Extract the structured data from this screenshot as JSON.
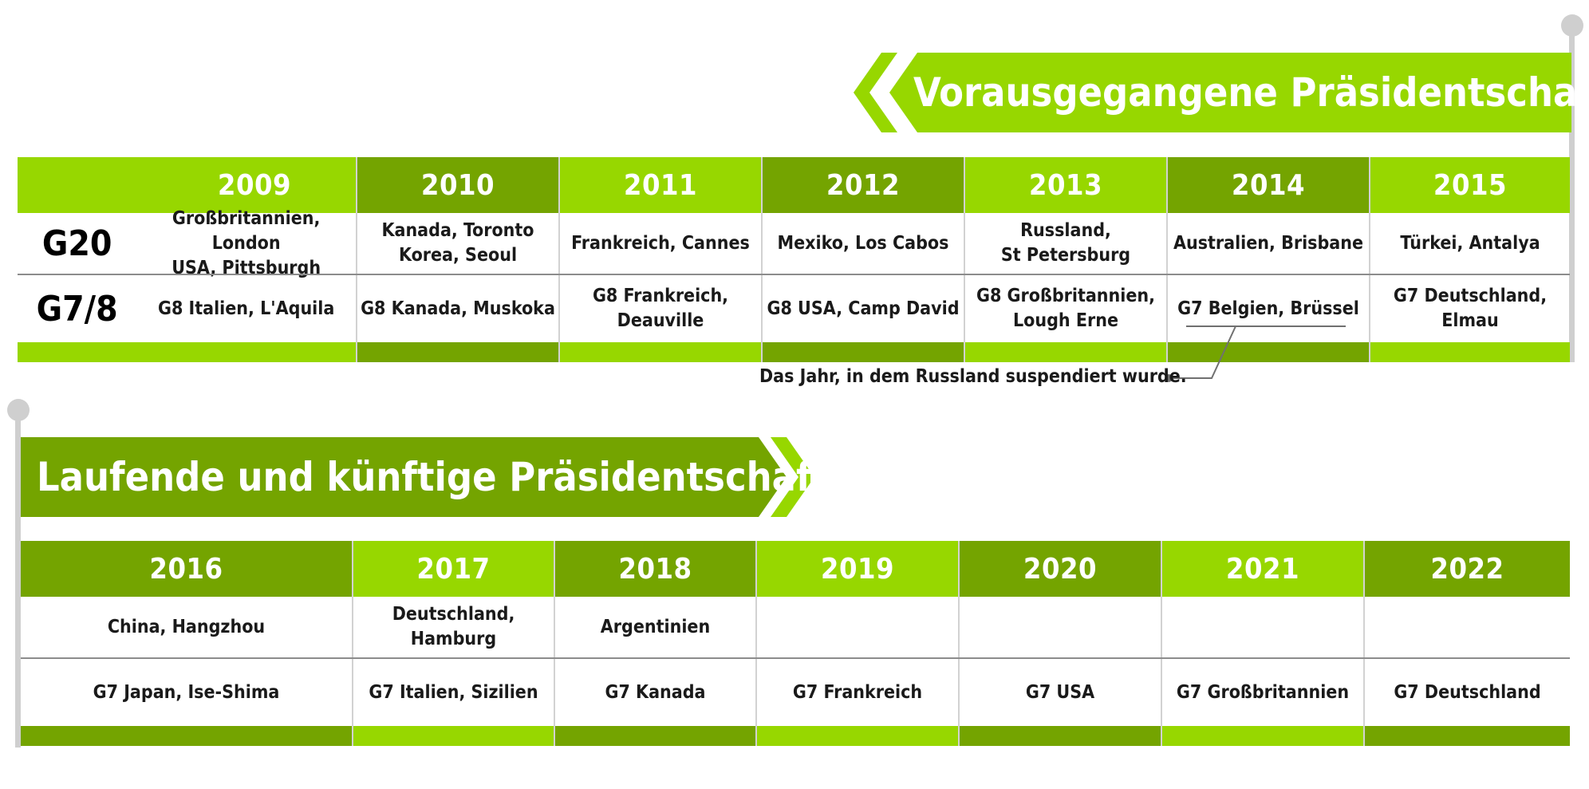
{
  "past": {
    "title": "Vorausgegangene Präsidentschaften",
    "row_labels": [
      "G20",
      "G7/8"
    ],
    "years": [
      "2009",
      "2010",
      "2011",
      "2012",
      "2013",
      "2014",
      "2015"
    ],
    "g20": [
      "Großbritannien, London\nUSA, Pittsburgh",
      "Kanada, Toronto\nKorea, Seoul",
      "Frankreich, Cannes",
      "Mexiko, Los Cabos",
      "Russland,\nSt Petersburg",
      "Australien, Brisbane",
      "Türkei, Antalya"
    ],
    "g7": [
      "G8 Italien, L'Aquila",
      "G8 Kanada, Muskoka",
      "G8 Frankreich,\nDeauville",
      "G8 USA, Camp David",
      "G8 Großbritannien,\nLough Erne",
      "G7 Belgien, Brüssel",
      "G7 Deutschland,\nElmau"
    ],
    "annotation": "Das Jahr, in dem Russland suspendiert wurde."
  },
  "future": {
    "title": "Laufende und künftige Präsidentschaften",
    "years": [
      "2016",
      "2017",
      "2018",
      "2019",
      "2020",
      "2021",
      "2022"
    ],
    "g20": [
      "China, Hangzhou",
      "Deutschland,\nHamburg",
      "Argentinien",
      "",
      "",
      "",
      ""
    ],
    "g7": [
      "G7 Japan, Ise-Shima",
      "G7 Italien, Sizilien",
      "G7 Kanada",
      "G7 Frankreich",
      "G7 USA",
      "G7 Großbritannien",
      "G7 Deutschland"
    ]
  },
  "colors": {
    "light_green": "#97d700",
    "dark_green": "#74a400",
    "pole_grey": "#cfcfcf"
  }
}
